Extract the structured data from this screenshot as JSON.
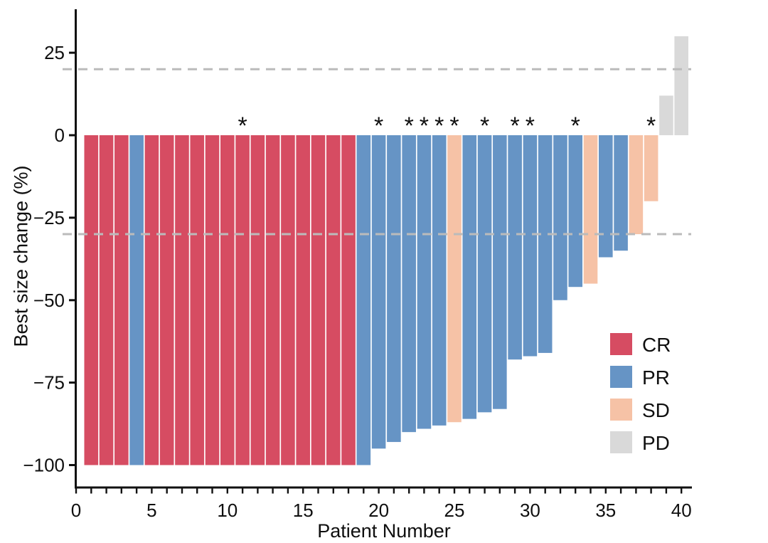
{
  "chart_data": {
    "type": "bar",
    "subtype": "waterfall",
    "title": "",
    "xlabel": "Patient Number",
    "ylabel": "Best size change (%)",
    "xlim": [
      0,
      41.5
    ],
    "ylim": [
      -106,
      37
    ],
    "x_major_ticks": [
      0,
      5,
      10,
      15,
      20,
      25,
      30,
      35,
      40
    ],
    "x_minor_tick_interval": 1,
    "x_minor_tick_range": [
      0,
      40
    ],
    "y_ticks": [
      25,
      0,
      -25,
      -50,
      -75,
      -100
    ],
    "grid": false,
    "reference_lines": {
      "values": [
        20,
        -30
      ],
      "style": "dashed",
      "color": "#BBBBBB"
    },
    "marker_symbol": "*",
    "marker_meaning": "starred patient bars",
    "starred_patients": [
      11,
      20,
      22,
      23,
      24,
      25,
      27,
      29,
      30,
      33,
      38
    ],
    "legend": {
      "position": "lower-right",
      "entries": [
        {
          "label": "CR",
          "color": "#D64C62"
        },
        {
          "label": "PR",
          "color": "#6694C5"
        },
        {
          "label": "SD",
          "color": "#F6C2A6"
        },
        {
          "label": "PD",
          "color": "#D9D9D9"
        }
      ]
    },
    "points": [
      {
        "patient": 1,
        "value": -100,
        "response": "CR",
        "starred": false
      },
      {
        "patient": 2,
        "value": -100,
        "response": "CR",
        "starred": false
      },
      {
        "patient": 3,
        "value": -100,
        "response": "CR",
        "starred": false
      },
      {
        "patient": 4,
        "value": -100,
        "response": "PR",
        "starred": false
      },
      {
        "patient": 5,
        "value": -100,
        "response": "CR",
        "starred": false
      },
      {
        "patient": 6,
        "value": -100,
        "response": "CR",
        "starred": false
      },
      {
        "patient": 7,
        "value": -100,
        "response": "CR",
        "starred": false
      },
      {
        "patient": 8,
        "value": -100,
        "response": "CR",
        "starred": false
      },
      {
        "patient": 9,
        "value": -100,
        "response": "CR",
        "starred": false
      },
      {
        "patient": 10,
        "value": -100,
        "response": "CR",
        "starred": false
      },
      {
        "patient": 11,
        "value": -100,
        "response": "CR",
        "starred": true
      },
      {
        "patient": 12,
        "value": -100,
        "response": "CR",
        "starred": false
      },
      {
        "patient": 13,
        "value": -100,
        "response": "CR",
        "starred": false
      },
      {
        "patient": 14,
        "value": -100,
        "response": "CR",
        "starred": false
      },
      {
        "patient": 15,
        "value": -100,
        "response": "CR",
        "starred": false
      },
      {
        "patient": 16,
        "value": -100,
        "response": "CR",
        "starred": false
      },
      {
        "patient": 17,
        "value": -100,
        "response": "CR",
        "starred": false
      },
      {
        "patient": 18,
        "value": -100,
        "response": "CR",
        "starred": false
      },
      {
        "patient": 19,
        "value": -100,
        "response": "PR",
        "starred": false
      },
      {
        "patient": 20,
        "value": -95,
        "response": "PR",
        "starred": true
      },
      {
        "patient": 21,
        "value": -93,
        "response": "PR",
        "starred": false
      },
      {
        "patient": 22,
        "value": -90,
        "response": "PR",
        "starred": true
      },
      {
        "patient": 23,
        "value": -89,
        "response": "PR",
        "starred": true
      },
      {
        "patient": 24,
        "value": -88,
        "response": "PR",
        "starred": true
      },
      {
        "patient": 25,
        "value": -87,
        "response": "SD",
        "starred": true
      },
      {
        "patient": 26,
        "value": -86,
        "response": "PR",
        "starred": false
      },
      {
        "patient": 27,
        "value": -84,
        "response": "PR",
        "starred": true
      },
      {
        "patient": 28,
        "value": -83,
        "response": "PR",
        "starred": false
      },
      {
        "patient": 29,
        "value": -68,
        "response": "PR",
        "starred": true
      },
      {
        "patient": 30,
        "value": -67,
        "response": "PR",
        "starred": true
      },
      {
        "patient": 31,
        "value": -66,
        "response": "PR",
        "starred": false
      },
      {
        "patient": 32,
        "value": -50,
        "response": "PR",
        "starred": false
      },
      {
        "patient": 33,
        "value": -46,
        "response": "PR",
        "starred": true
      },
      {
        "patient": 34,
        "value": -45,
        "response": "SD",
        "starred": false
      },
      {
        "patient": 35,
        "value": -37,
        "response": "PR",
        "starred": false
      },
      {
        "patient": 36,
        "value": -35,
        "response": "PR",
        "starred": false
      },
      {
        "patient": 37,
        "value": -30,
        "response": "SD",
        "starred": false
      },
      {
        "patient": 38,
        "value": -20,
        "response": "SD",
        "starred": true
      },
      {
        "patient": 39,
        "value": 12,
        "response": "PD",
        "starred": false
      },
      {
        "patient": 40,
        "value": 30,
        "response": "PD",
        "starred": false
      }
    ]
  }
}
